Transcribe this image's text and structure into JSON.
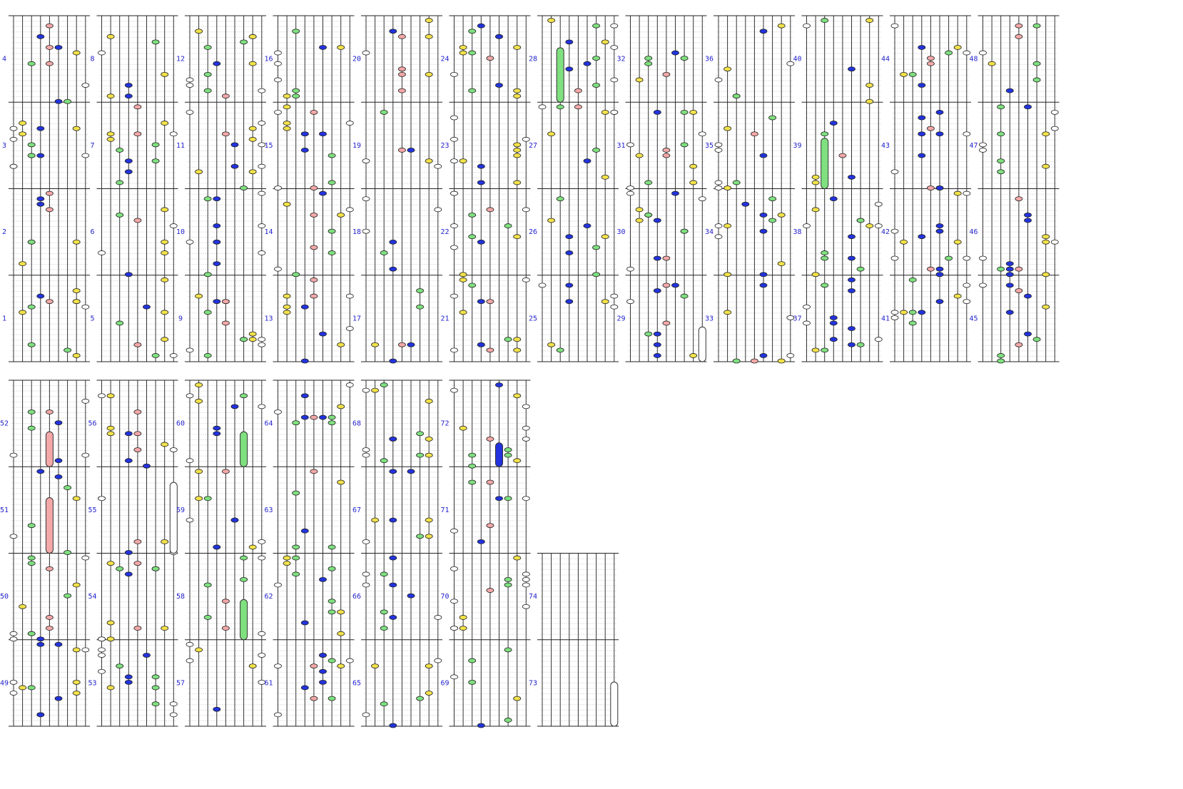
{
  "measures": {
    "labels": [
      1,
      2,
      3,
      4,
      5,
      6,
      7,
      8,
      9,
      10,
      11,
      12,
      13,
      14,
      15,
      16,
      17,
      18,
      19,
      20,
      21,
      22,
      23,
      24,
      25,
      26,
      27,
      28,
      29,
      30,
      31,
      32,
      33,
      34,
      35,
      36,
      37,
      38,
      39,
      40,
      41,
      42,
      43,
      44,
      45,
      46,
      47,
      48,
      49,
      50,
      51,
      52,
      53,
      54,
      55,
      56,
      57,
      58,
      59,
      60,
      61,
      62,
      63,
      64,
      65,
      66,
      67,
      68,
      69,
      70,
      71,
      72,
      73,
      74
    ]
  }
}
